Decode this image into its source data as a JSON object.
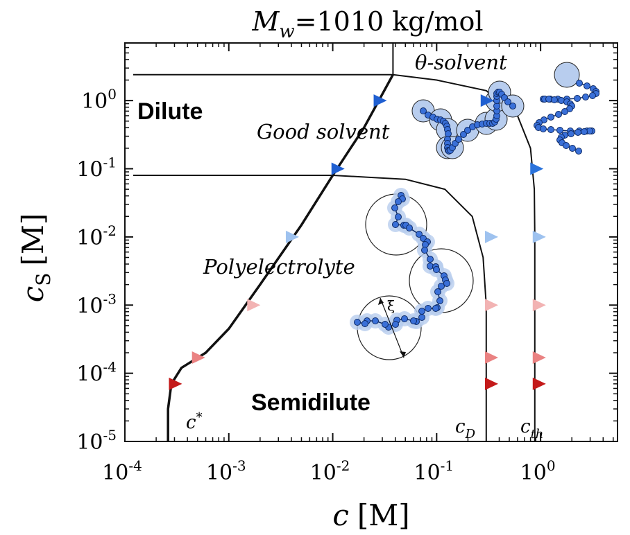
{
  "chart_data": {
    "type": "line",
    "title_symbol": "M",
    "title_subscript": "w",
    "title_value": "=1010 kg/mol",
    "xlabel_symbol": "c",
    "xlabel_unit": "[M]",
    "ylabel_symbol": "c",
    "ylabel_subscript": "S",
    "ylabel_unit": "[M]",
    "x_scale": "log",
    "y_scale": "log",
    "xlim": [
      0.0001,
      5.5
    ],
    "ylim": [
      1e-05,
      7
    ],
    "x_ticks": [
      {
        "value": 0.0001,
        "base": "10",
        "exp": "-4"
      },
      {
        "value": 0.001,
        "base": "10",
        "exp": "-3"
      },
      {
        "value": 0.01,
        "base": "10",
        "exp": "-2"
      },
      {
        "value": 0.1,
        "base": "10",
        "exp": "-1"
      },
      {
        "value": 1,
        "base": "10",
        "exp": "0"
      }
    ],
    "y_ticks": [
      {
        "value": 1e-05,
        "base": "10",
        "exp": "-5"
      },
      {
        "value": 0.0001,
        "base": "10",
        "exp": "-4"
      },
      {
        "value": 0.001,
        "base": "10",
        "exp": "-3"
      },
      {
        "value": 0.01,
        "base": "10",
        "exp": "-2"
      },
      {
        "value": 0.1,
        "base": "10",
        "exp": "-1"
      },
      {
        "value": 1,
        "base": "10",
        "exp": "0"
      }
    ],
    "regions": {
      "dilute": "Dilute",
      "semidilute": "Semidilute",
      "good_solvent": "Good solvent",
      "theta_solvent": "θ-solvent",
      "polyelectrolyte": "Polyelectrolyte",
      "xi": "ξ"
    },
    "line_labels": {
      "c_star_base": "c",
      "c_star_sup": "*",
      "c_D_base": "c",
      "c_D_sub": "D",
      "c_th_base": "c",
      "c_th_sub": "th"
    },
    "series": [
      {
        "points": [
          [
            0.00026,
            1e-05
          ],
          [
            0.00026,
            3e-05
          ],
          [
            0.00028,
            7e-05
          ],
          [
            0.00035,
            0.00012
          ],
          [
            0.0006,
            0.0002
          ],
          [
            0.001,
            0.00045
          ],
          [
            0.002,
            0.002
          ],
          [
            0.005,
            0.015
          ],
          [
            0.01,
            0.08
          ],
          [
            0.02,
            0.4
          ],
          [
            0.038,
            2.4
          ]
        ],
        "color": "#111111"
      },
      {
        "points": [
          [
            0.00012,
            0.08
          ],
          [
            0.01,
            0.08
          ],
          [
            0.05,
            0.07
          ],
          [
            0.12,
            0.05
          ],
          [
            0.22,
            0.02
          ],
          [
            0.28,
            0.005
          ],
          [
            0.3,
            0.001
          ],
          [
            0.3,
            1e-05
          ]
        ],
        "color": "#111111"
      },
      {
        "points": [
          [
            0.038,
            2.4
          ],
          [
            0.1,
            2.0
          ],
          [
            0.3,
            1.4
          ],
          [
            0.6,
            0.6
          ],
          [
            0.8,
            0.2
          ],
          [
            0.87,
            0.05
          ],
          [
            0.88,
            0.01
          ],
          [
            0.88,
            1e-05
          ]
        ],
        "color": "#111111"
      },
      {
        "points": [
          [
            0.00012,
            2.4
          ],
          [
            0.038,
            2.4
          ]
        ],
        "color": "#111111"
      },
      {
        "points": [
          [
            0.038,
            2.4
          ],
          [
            0.038,
            7
          ]
        ],
        "color": "#111111"
      }
    ],
    "markers": [
      {
        "x": 0.028,
        "y": 1.0,
        "color": "#1f5fd1"
      },
      {
        "x": 0.3,
        "y": 1.0,
        "color": "#1f5fd1"
      },
      {
        "x": 0.011,
        "y": 0.1,
        "color": "#1f5fd1"
      },
      {
        "x": 0.9,
        "y": 0.1,
        "color": "#2b73dc"
      },
      {
        "x": 0.004,
        "y": 0.01,
        "color": "#9ec2ef"
      },
      {
        "x": 0.33,
        "y": 0.01,
        "color": "#9ec2ef"
      },
      {
        "x": 0.95,
        "y": 0.01,
        "color": "#9ec2ef"
      },
      {
        "x": 0.0017,
        "y": 0.001,
        "color": "#f2b3b3"
      },
      {
        "x": 0.33,
        "y": 0.001,
        "color": "#f2b3b3"
      },
      {
        "x": 0.95,
        "y": 0.001,
        "color": "#f2b3b3"
      },
      {
        "x": 0.0005,
        "y": 0.00017,
        "color": "#ea8282"
      },
      {
        "x": 0.33,
        "y": 0.00017,
        "color": "#ea8282"
      },
      {
        "x": 0.95,
        "y": 0.00017,
        "color": "#ea8282"
      },
      {
        "x": 0.0003,
        "y": 7e-05,
        "color": "#c41a1a"
      },
      {
        "x": 0.33,
        "y": 7e-05,
        "color": "#c41a1a"
      },
      {
        "x": 0.95,
        "y": 7e-05,
        "color": "#c41a1a"
      }
    ],
    "colors": {
      "bead": "#3a70d8",
      "bead_stroke": "#0d2a66",
      "blob": "#b8cdee",
      "axis": "#111111"
    }
  }
}
